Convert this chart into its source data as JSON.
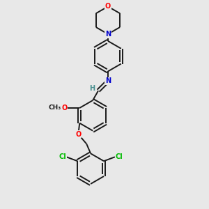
{
  "background_color": "#e8e8e8",
  "bond_color": "#1a1a1a",
  "atom_colors": {
    "N": "#0000cd",
    "O": "#ff0000",
    "Cl": "#00bb00",
    "C": "#1a1a1a",
    "H": "#4a9090"
  },
  "figsize": [
    3.0,
    3.0
  ],
  "dpi": 100,
  "lw": 1.4,
  "fs": 7.0
}
